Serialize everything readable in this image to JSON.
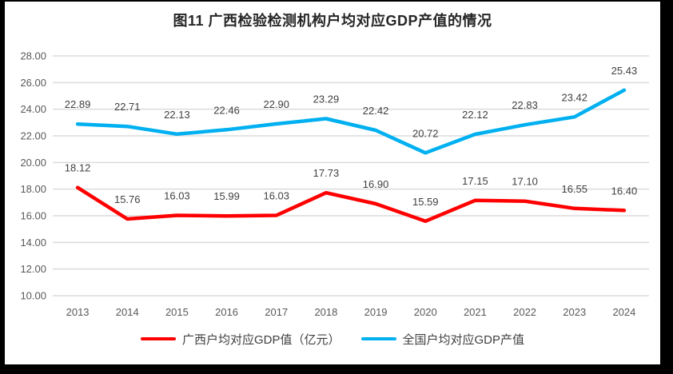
{
  "title": "图11 广西检验检测机构户均对应GDP产值的情况",
  "chart_data": {
    "type": "line",
    "title": "图11 广西检验检测机构户均对应GDP产值的情况",
    "categories": [
      "2013",
      "2014",
      "2015",
      "2016",
      "2017",
      "2018",
      "2019",
      "2020",
      "2021",
      "2022",
      "2023",
      "2024"
    ],
    "series": [
      {
        "name": "广西户均对应GDP值（亿元）",
        "color": "#FF0000",
        "values": [
          18.12,
          15.76,
          16.03,
          15.99,
          16.03,
          17.73,
          16.9,
          15.59,
          17.15,
          17.1,
          16.55,
          16.4
        ]
      },
      {
        "name": "全国户均对应GDP产值",
        "color": "#00B0F0",
        "values": [
          22.89,
          22.71,
          22.13,
          22.46,
          22.9,
          23.29,
          22.42,
          20.72,
          22.12,
          22.83,
          23.42,
          25.43
        ]
      }
    ],
    "ylim": [
      10,
      28
    ],
    "ytick_step": 2,
    "ytick_decimals": 2,
    "grid": true,
    "data_labels": true,
    "legend_position": "bottom"
  },
  "colors": {
    "grid": "#DCDCDC",
    "axis_text": "#595959",
    "label_text": "#404040",
    "title_text": "#262626",
    "chart_background": "#FFFFFF",
    "frame_background": "#000000"
  }
}
